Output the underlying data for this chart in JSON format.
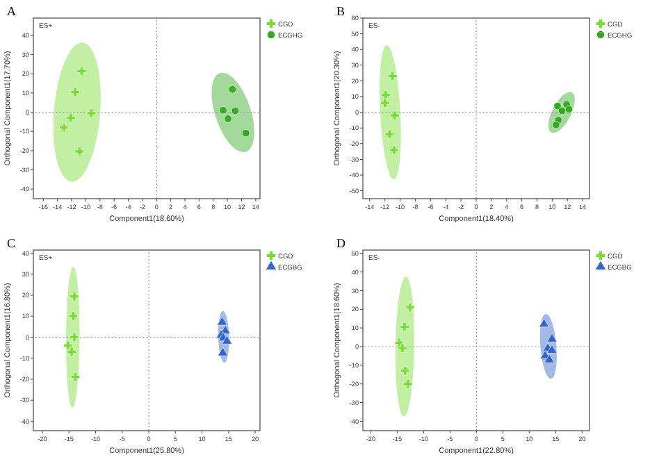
{
  "chart_data": [
    {
      "type": "scatter",
      "title": "A",
      "annotations": [
        "ES+"
      ],
      "xlabel": "Component1(18.60%)",
      "ylabel": "Orthogonal Component1(17.70%)",
      "xlim": [
        -17.4,
        14.6
      ],
      "ylim": [
        -45,
        49
      ],
      "xticks": [
        -16,
        -14,
        -12,
        -10,
        -8,
        -6,
        -4,
        -2,
        0,
        2,
        4,
        6,
        8,
        10,
        12,
        14
      ],
      "yticks": [
        -40,
        -30,
        -20,
        -10,
        0,
        10,
        20,
        30,
        40
      ],
      "grid": false,
      "legend": "right",
      "ref_lines": [
        {
          "axis": "x",
          "value": 0,
          "line_style": "dotted",
          "color": "#999999"
        },
        {
          "axis": "y",
          "value": 0,
          "line_style": "dotted",
          "color": "#999999"
        }
      ],
      "series": [
        {
          "name": "CGD",
          "color": "#77dd33",
          "marker": "cross",
          "x": [
            -10.6,
            -11.5,
            -9.2,
            -12.1,
            -13.1,
            -10.9
          ],
          "values": [
            21.3,
            10.4,
            -0.5,
            -2.9,
            -8,
            -20.4
          ]
        },
        {
          "name": "ECGHG",
          "color": "#33aa22",
          "marker": "circle",
          "x": [
            10.7,
            9.4,
            11.1,
            10.1,
            12.6
          ],
          "values": [
            11.9,
            1,
            0.7,
            -3.4,
            -10.9
          ]
        }
      ]
    },
    {
      "type": "scatter",
      "title": "B",
      "annotations": [
        "ES-"
      ],
      "xlabel": "Component1(18.40%)",
      "ylabel": "Orthogonal Component1(20.30%)",
      "xlim": [
        -14.9,
        14.9
      ],
      "ylim": [
        -55,
        60
      ],
      "xticks": [
        -14,
        -12,
        -10,
        -8,
        -6,
        -4,
        -2,
        0,
        2,
        4,
        6,
        8,
        10,
        12,
        14
      ],
      "yticks": [
        -50,
        -40,
        -30,
        -20,
        -10,
        0,
        10,
        20,
        30,
        40,
        50,
        60
      ],
      "grid": false,
      "legend": "right",
      "ref_lines": [
        {
          "axis": "x",
          "value": 0,
          "line_style": "dotted",
          "color": "#999999"
        },
        {
          "axis": "y",
          "value": 0,
          "line_style": "dotted",
          "color": "#999999"
        }
      ],
      "series": [
        {
          "name": "CGD",
          "color": "#77dd33",
          "marker": "cross",
          "x": [
            -11,
            -11.9,
            -12,
            -10.7,
            -11.4,
            -10.8
          ],
          "values": [
            23,
            11,
            6,
            -2,
            -14,
            -24
          ]
        },
        {
          "name": "ECGHG",
          "color": "#33aa22",
          "marker": "circle",
          "x": [
            10.7,
            11.9,
            11.3,
            12.2,
            10.8,
            10.5
          ],
          "values": [
            4,
            5,
            1,
            2,
            -5,
            -8
          ]
        }
      ]
    },
    {
      "type": "scatter",
      "title": "C",
      "annotations": [
        "ES+"
      ],
      "xlabel": "Component1(25.80%)",
      "ylabel": "Orthogonal Component1(16.80%)",
      "xlim": [
        -21.7,
        20.9
      ],
      "ylim": [
        -44.5,
        41.5
      ],
      "xticks": [
        -20,
        -15,
        -10,
        -5,
        0,
        5,
        10,
        15,
        20
      ],
      "yticks": [
        -40,
        -30,
        -20,
        -10,
        0,
        10,
        20,
        30,
        40
      ],
      "grid": false,
      "legend": "right",
      "ref_lines": [
        {
          "axis": "x",
          "value": 0,
          "line_style": "dotted",
          "color": "#999999"
        },
        {
          "axis": "y",
          "value": 0,
          "line_style": "dotted",
          "color": "#999999"
        }
      ],
      "series": [
        {
          "name": "CGD",
          "color": "#77dd33",
          "marker": "cross",
          "x": [
            -14,
            -14.2,
            -14,
            -15.2,
            -14.5,
            -13.8
          ],
          "values": [
            19.4,
            10.1,
            0,
            -3.9,
            -6.9,
            -18.9
          ]
        },
        {
          "name": "ECGBG",
          "color": "#3366cc",
          "marker": "triangle",
          "x": [
            13.8,
            14.4,
            13.6,
            14,
            14.7,
            13.9
          ],
          "values": [
            7.1,
            3,
            0.9,
            -0.4,
            -1.9,
            -7.5
          ]
        }
      ]
    },
    {
      "type": "scatter",
      "title": "D",
      "annotations": [
        "ES-"
      ],
      "xlabel": "Component1(22.80%)",
      "ylabel": "Orthogonal Component1(18.60%)",
      "xlim": [
        -21.5,
        21.4
      ],
      "ylim": [
        -45,
        51.7
      ],
      "xticks": [
        -20,
        -15,
        -10,
        -5,
        0,
        5,
        10,
        15,
        20
      ],
      "yticks": [
        -40,
        -30,
        -20,
        -10,
        0,
        10,
        20,
        30,
        40,
        50
      ],
      "grid": false,
      "legend": "right",
      "ref_lines": [
        {
          "axis": "x",
          "value": 0,
          "line_style": "dotted",
          "color": "#999999"
        },
        {
          "axis": "y",
          "value": 0,
          "line_style": "dotted",
          "color": "#999999"
        }
      ],
      "series": [
        {
          "name": "CGD",
          "color": "#77dd33",
          "marker": "cross",
          "x": [
            -12.6,
            -13.6,
            -14.6,
            -14,
            -13.5,
            -13
          ],
          "values": [
            21,
            10.6,
            2.1,
            -0.8,
            -12.9,
            -19.9
          ]
        },
        {
          "name": "ECGBG",
          "color": "#3366cc",
          "marker": "triangle",
          "x": [
            12.8,
            14.3,
            13.5,
            14.3,
            13,
            13.8
          ],
          "values": [
            12,
            4,
            -1,
            -2,
            -5,
            -7.1
          ]
        }
      ]
    }
  ]
}
